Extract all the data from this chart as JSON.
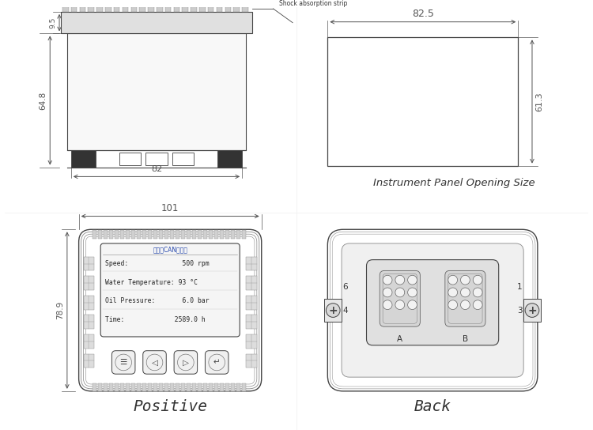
{
  "bg_color": "#ffffff",
  "line_color": "#444444",
  "dim_color": "#555555",
  "text_color": "#333333",
  "dim_labels": {
    "d64_8": "64.8",
    "d9_5": "9.5",
    "d82": "82",
    "d82_5": "82.5",
    "d61_3": "61.3",
    "d101": "101",
    "d78_9": "78.9"
  },
  "labels": {
    "panel_label": "Instrument Panel Opening Size",
    "positive": "Positive",
    "back": "Back",
    "shock": "Shock absorption strip",
    "display_title": "发动朼CAN监控仪",
    "speed": "Speed:              500 rpm",
    "water": "Water Temperature: 93 °C",
    "oil": "Oil Pressure:       6.0 bar",
    "time": "Time:             2589.0 h",
    "A": "A",
    "B": "B",
    "n6": "6",
    "n4": "4",
    "n1": "1",
    "n3": "3"
  }
}
